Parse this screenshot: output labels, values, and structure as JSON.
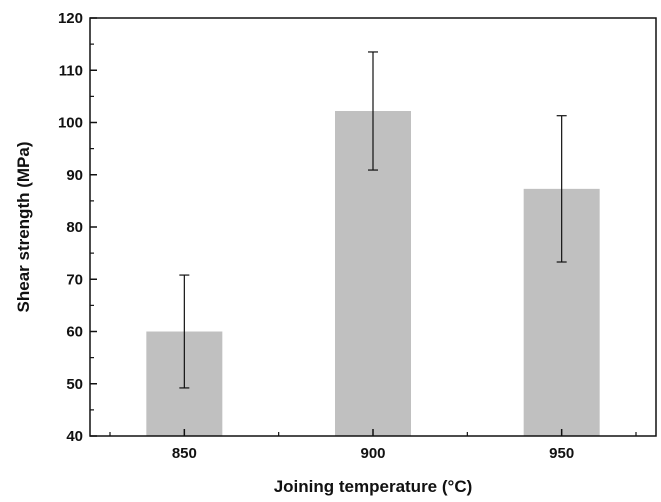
{
  "chart_data": {
    "type": "bar",
    "title": "",
    "xlabel": "Joining temperature (°C)",
    "ylabel": "Shear strength (MPa)",
    "categories": [
      "850",
      "900",
      "950"
    ],
    "values": [
      60.0,
      102.2,
      87.3
    ],
    "error_low": [
      49.2,
      90.9,
      73.3
    ],
    "error_high": [
      70.8,
      113.5,
      101.3
    ],
    "ylim": [
      40,
      120
    ],
    "yticks": [
      40,
      50,
      60,
      70,
      80,
      90,
      100,
      110,
      120
    ],
    "bar_color": "#c0c0c0",
    "grid": false,
    "legend": "none"
  }
}
